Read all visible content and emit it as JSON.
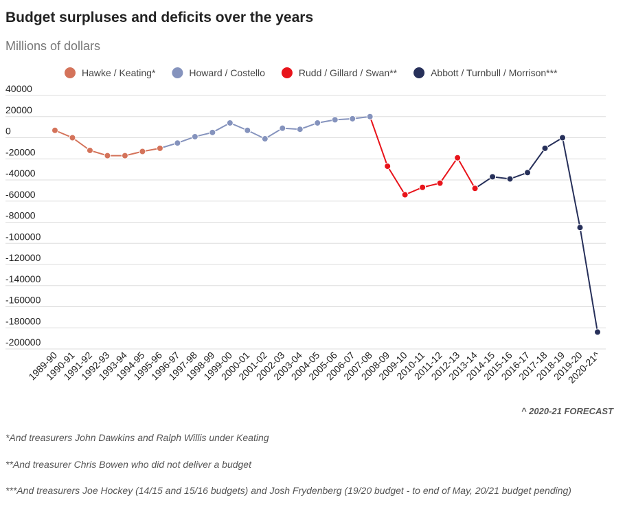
{
  "chart_data": {
    "type": "line",
    "title": "Budget surpluses and deficits over the years",
    "subtitle": "Millions of dollars",
    "categories": [
      "1989-90",
      "1990-91",
      "1991-92",
      "1992-93",
      "1993-94",
      "1994-95",
      "1995-96",
      "1996-97",
      "1997-98",
      "1998-99",
      "1999-00",
      "2000-01",
      "2001-02",
      "2002-03",
      "2003-04",
      "2004-05",
      "2005-06",
      "2006-07",
      "2007-08",
      "2008-09",
      "2009-10",
      "2010-11",
      "2011-12",
      "2012-13",
      "2013-14",
      "2014-15",
      "2015-16",
      "2016-17",
      "2017-18",
      "2018-19",
      "2019-20",
      "2020-21^"
    ],
    "series": [
      {
        "name": "Hawke / Keating*",
        "color": "#d4735a",
        "values": [
          7000,
          0,
          -12000,
          -17000,
          -17000,
          -13000,
          -10000,
          null,
          null,
          null,
          null,
          null,
          null,
          null,
          null,
          null,
          null,
          null,
          null,
          null,
          null,
          null,
          null,
          null,
          null,
          null,
          null,
          null,
          null,
          null,
          null,
          null
        ]
      },
      {
        "name": "Howard / Costello",
        "color": "#8593bd",
        "values": [
          null,
          null,
          null,
          null,
          null,
          null,
          null,
          -5000,
          1000,
          5000,
          14000,
          7000,
          -1000,
          9000,
          8000,
          14000,
          17000,
          18000,
          20000,
          null,
          null,
          null,
          null,
          null,
          null,
          null,
          null,
          null,
          null,
          null,
          null,
          null
        ]
      },
      {
        "name": "Rudd / Gillard / Swan**",
        "color": "#e8141b",
        "values": [
          null,
          null,
          null,
          null,
          null,
          null,
          null,
          null,
          null,
          null,
          null,
          null,
          null,
          null,
          null,
          null,
          null,
          null,
          null,
          -27000,
          -54000,
          -47000,
          -43000,
          -19000,
          -48000,
          null,
          null,
          null,
          null,
          null,
          null,
          null
        ]
      },
      {
        "name": "Abbott / Turnbull / Morrison***",
        "color": "#27305a",
        "values": [
          null,
          null,
          null,
          null,
          null,
          null,
          null,
          null,
          null,
          null,
          null,
          null,
          null,
          null,
          null,
          null,
          null,
          null,
          null,
          null,
          null,
          null,
          null,
          null,
          null,
          -37000,
          -39000,
          -33000,
          -10000,
          0,
          -85000,
          -184000
        ]
      }
    ],
    "ylim": [
      -200000,
      40000
    ],
    "yticks": [
      40000,
      20000,
      0,
      -20000,
      -40000,
      -60000,
      -80000,
      -100000,
      -120000,
      -140000,
      -160000,
      -180000,
      -200000
    ],
    "grid": true,
    "legend": "top",
    "annotation": "^ 2020-21 FORECAST",
    "footnotes": [
      "*And treasurers John Dawkins and Ralph Willis under Keating",
      "**And treasurer Chris Bowen who did not deliver a budget",
      "***And treasurers Joe Hockey (14/15 and 15/16 budgets) and Josh Frydenberg (19/20 budget - to end of May, 20/21 budget pending)"
    ]
  }
}
